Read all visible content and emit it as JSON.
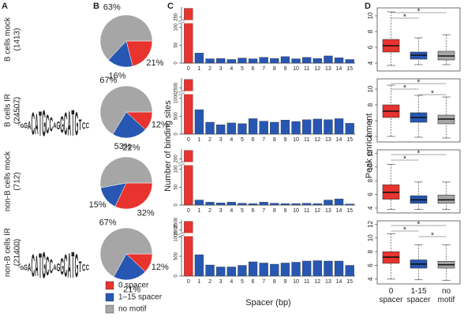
{
  "panel_labels": [
    "A",
    "B",
    "C",
    "D"
  ],
  "row_labels": [
    [
      "B cells mock",
      "(1413)"
    ],
    [
      "B cells IR",
      "(24507)"
    ],
    [
      "non-B cells mock",
      "(712)"
    ],
    [
      "non-B cells IR",
      "(21400)"
    ]
  ],
  "logo": {
    "letters": [
      "G",
      "G",
      "A",
      "C",
      "A",
      "T",
      "G",
      "C",
      "C",
      "A",
      "G",
      "G",
      "C",
      "A",
      "T",
      "G",
      "T",
      "C",
      "C"
    ],
    "bits": [
      0.3,
      0.4,
      0.6,
      1.6,
      1.5,
      1.8,
      1.9,
      1.4,
      1.0,
      0.4,
      0.6,
      1.2,
      1.6,
      1.8,
      1.9,
      1.7,
      0.8,
      0.5,
      0.4
    ],
    "ylim": [
      0,
      2
    ],
    "letter_colors": {
      "A": "#2ca02c",
      "C": "#1f5fbf",
      "G": "#f39c12",
      "T": "#d62728"
    }
  },
  "legend": [
    {
      "name": "0 spacer",
      "color": "#e8332e"
    },
    {
      "name": "1–15 spacer",
      "color": "#2757b3"
    },
    {
      "name": "no motif",
      "color": "#a6a6a6"
    }
  ],
  "bar_ylabel": "Number of binding sites",
  "bar_xlabel": "Spacer (bp)",
  "box_ylabel": "Peak enrichment",
  "box_categories": [
    "0 spacer",
    "1-15 spacer",
    "no motif"
  ],
  "chart_data": [
    {
      "type": "pie",
      "values": [
        21,
        16,
        63
      ],
      "value_labels": [
        "21%",
        "16%",
        "63%"
      ]
    },
    {
      "type": "pie",
      "values": [
        12,
        22,
        67
      ],
      "value_labels": [
        "12%",
        "22%",
        "67%"
      ]
    },
    {
      "type": "pie",
      "values": [
        32,
        15,
        53
      ],
      "value_labels": [
        "32%",
        "15%",
        "53%"
      ]
    },
    {
      "type": "pie",
      "values": [
        12,
        21,
        67
      ],
      "value_labels": [
        "12%",
        "21%",
        "67%"
      ]
    },
    {
      "type": "bar",
      "categories": [
        "0",
        "1",
        "2",
        "3",
        "4",
        "5",
        "6",
        "7",
        "8",
        "9",
        "10",
        "11",
        "12",
        "13",
        "14",
        "15"
      ],
      "values": [
        285,
        28,
        12,
        13,
        10,
        14,
        12,
        16,
        13,
        18,
        12,
        16,
        13,
        20,
        15,
        10
      ],
      "ylim": [
        0,
        290
      ],
      "axis_break": [
        110,
        240
      ],
      "yticks": [
        0,
        50,
        100,
        250
      ]
    },
    {
      "type": "bar",
      "categories": [
        "0",
        "1",
        "2",
        "3",
        "4",
        "5",
        "6",
        "7",
        "8",
        "9",
        "10",
        "11",
        "12",
        "13",
        "14",
        "15"
      ],
      "values": [
        2800,
        680,
        330,
        260,
        310,
        290,
        430,
        360,
        330,
        390,
        350,
        400,
        420,
        400,
        430,
        300
      ],
      "ylim": [
        0,
        2850
      ],
      "axis_break": [
        1100,
        2400
      ],
      "yticks": [
        0,
        500,
        1000,
        2500
      ]
    },
    {
      "type": "bar",
      "categories": [
        "0",
        "1",
        "2",
        "3",
        "4",
        "5",
        "6",
        "7",
        "8",
        "9",
        "10",
        "11",
        "12",
        "13",
        "14",
        "15"
      ],
      "values": [
        230,
        14,
        8,
        6,
        8,
        5,
        4,
        8,
        5,
        4,
        4,
        5,
        4,
        14,
        17,
        3
      ],
      "ylim": [
        0,
        235
      ],
      "axis_break": [
        110,
        190
      ],
      "yticks": [
        0,
        50,
        100,
        200
      ]
    },
    {
      "type": "bar",
      "categories": [
        "0",
        "1",
        "2",
        "3",
        "4",
        "5",
        "6",
        "7",
        "8",
        "9",
        "10",
        "11",
        "12",
        "13",
        "14",
        "15"
      ],
      "values": [
        2600,
        540,
        280,
        230,
        230,
        270,
        360,
        330,
        300,
        330,
        350,
        380,
        390,
        380,
        380,
        270
      ],
      "ylim": [
        0,
        2700
      ],
      "axis_break": [
        1000,
        1800
      ],
      "yticks": [
        0,
        500,
        1000,
        2000,
        2500
      ]
    },
    {
      "type": "box",
      "ylim": [
        3,
        11
      ],
      "yticks": [
        4,
        6,
        8,
        10
      ],
      "boxes": [
        {
          "min": 3.7,
          "q1": 5.4,
          "median": 6.2,
          "q3": 7.0,
          "max": 10.5
        },
        {
          "min": 3.8,
          "q1": 4.5,
          "median": 5.0,
          "q3": 5.4,
          "max": 7.2
        },
        {
          "min": 3.8,
          "q1": 4.4,
          "median": 4.9,
          "q3": 5.5,
          "max": 7.6
        }
      ],
      "brackets": [
        {
          "between": [
            0,
            2
          ],
          "label": "*"
        },
        {
          "between": [
            0,
            1
          ],
          "label": "*"
        }
      ]
    },
    {
      "type": "box",
      "ylim": [
        3.3,
        11.3
      ],
      "yticks": [
        4,
        6,
        8,
        10
      ],
      "boxes": [
        {
          "min": 4.0,
          "q1": 6.4,
          "median": 7.2,
          "q3": 8.0,
          "max": 10.5
        },
        {
          "min": 3.9,
          "q1": 5.8,
          "median": 6.4,
          "q3": 7.0,
          "max": 9.2
        },
        {
          "min": 3.8,
          "q1": 5.6,
          "median": 6.2,
          "q3": 6.7,
          "max": 9.0
        }
      ],
      "brackets": [
        {
          "between": [
            0,
            2
          ],
          "label": "*"
        },
        {
          "between": [
            0,
            1
          ],
          "label": "*"
        },
        {
          "between": [
            1,
            2
          ],
          "label": "*"
        }
      ]
    },
    {
      "type": "box",
      "ylim": [
        3.3,
        12.5
      ],
      "yticks": [
        4,
        6,
        8,
        10,
        12
      ],
      "boxes": [
        {
          "min": 3.8,
          "q1": 5.3,
          "median": 6.3,
          "q3": 7.4,
          "max": 10.4
        },
        {
          "min": 3.8,
          "q1": 4.7,
          "median": 5.2,
          "q3": 5.8,
          "max": 7.8
        },
        {
          "min": 3.8,
          "q1": 4.7,
          "median": 5.2,
          "q3": 5.9,
          "max": 7.8
        }
      ],
      "brackets": [
        {
          "between": [
            0,
            2
          ],
          "label": "*"
        },
        {
          "between": [
            0,
            1
          ],
          "label": "*"
        }
      ]
    },
    {
      "type": "box",
      "ylim": [
        3.3,
        12.5
      ],
      "yticks": [
        4,
        6,
        8,
        10,
        12
      ],
      "boxes": [
        {
          "min": 4.0,
          "q1": 6.3,
          "median": 7.2,
          "q3": 8.0,
          "max": 10.6
        },
        {
          "min": 3.9,
          "q1": 5.6,
          "median": 6.2,
          "q3": 6.8,
          "max": 9.0
        },
        {
          "min": 3.8,
          "q1": 5.6,
          "median": 6.1,
          "q3": 6.6,
          "max": 9.0
        }
      ],
      "brackets": [
        {
          "between": [
            0,
            2
          ],
          "label": "*"
        },
        {
          "between": [
            0,
            1
          ],
          "label": "*"
        },
        {
          "between": [
            1,
            2
          ],
          "label": "*"
        }
      ]
    }
  ]
}
